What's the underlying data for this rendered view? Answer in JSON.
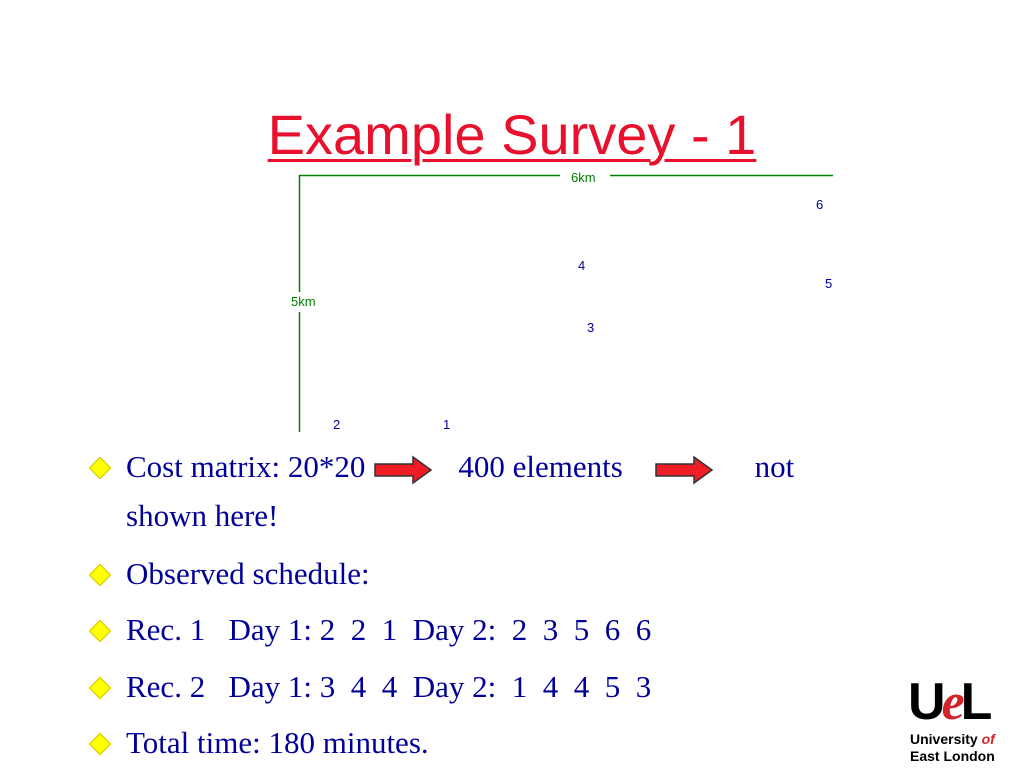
{
  "title": "Example Survey - 1",
  "diagram": {
    "width_label": "6km",
    "height_label": "5km",
    "points": [
      "6",
      "4",
      "5",
      "3",
      "2",
      "1"
    ]
  },
  "bullets": [
    {
      "parts": [
        "Cost matrix: 20*20",
        "400 elements",
        "not"
      ],
      "continuation": "shown here!"
    },
    {
      "text": "Observed schedule:"
    },
    {
      "text": "Rec. 1   Day 1: 2  2  1  Day 2:  2  3  5  6  6"
    },
    {
      "text": "Rec. 2   Day 1: 3  4  4  Day 2:  1  4  4  5  3"
    },
    {
      "text": "Total time: 180 minutes."
    }
  ],
  "logo": {
    "mark": [
      "U",
      "e",
      "L"
    ],
    "line1": "University",
    "line1_accent": "of",
    "line2": "East London"
  }
}
